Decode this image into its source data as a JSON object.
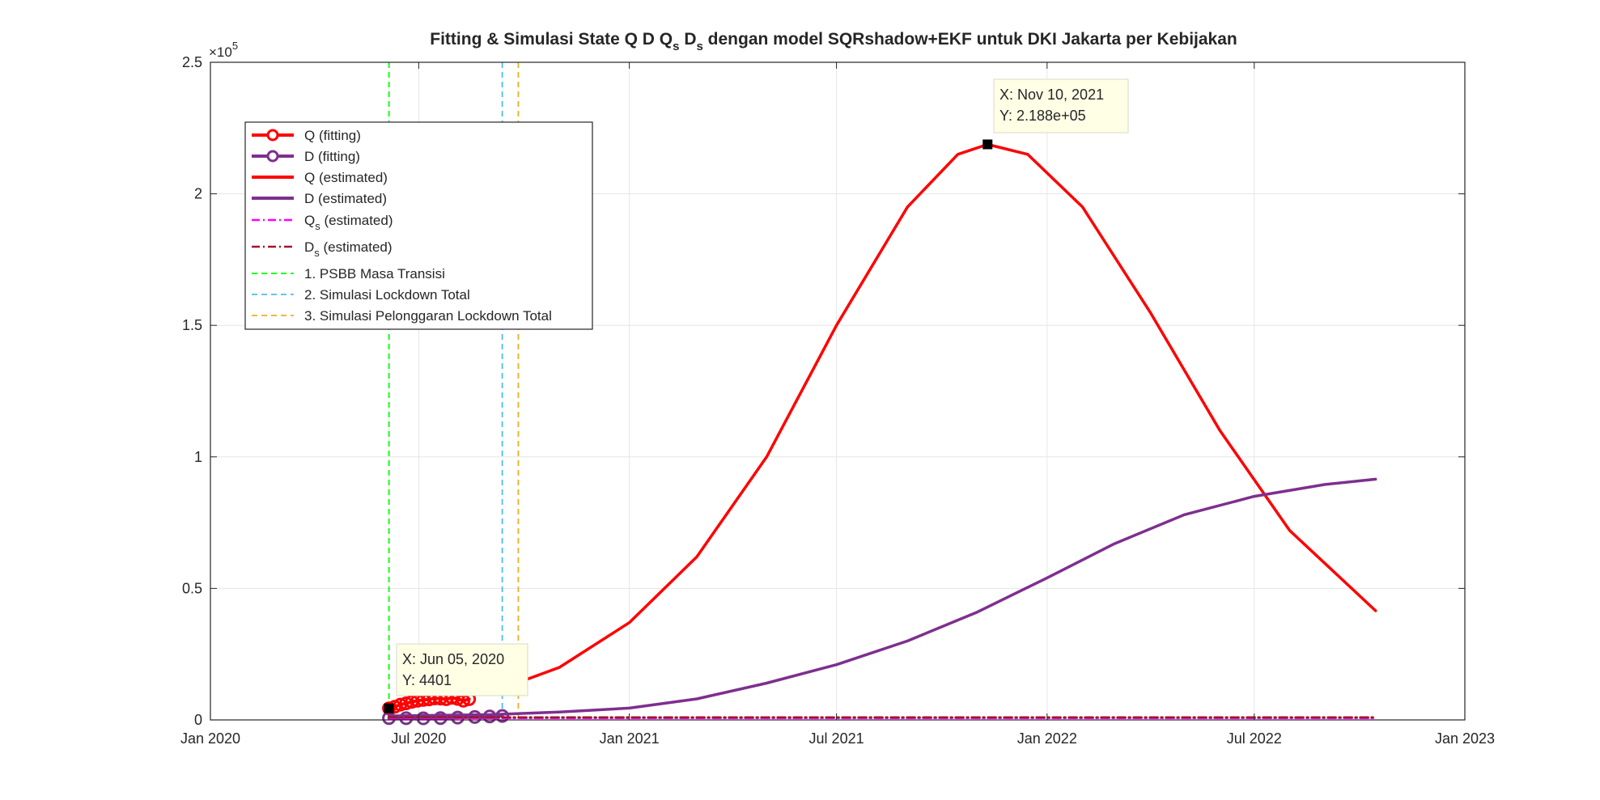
{
  "chart_data": {
    "type": "line",
    "title_parts": {
      "a": "Fitting & Simulasi State  Q D Q",
      "b": "s",
      "c": " D",
      "d": "s",
      "e": " dengan model SQRshadow+EKF untuk DKI Jakarta per Kebijakan"
    },
    "y_exponent": {
      "base": "×10",
      "power": "5"
    },
    "xlim": [
      "2020-01-01",
      "2023-01-01"
    ],
    "ylim": [
      0,
      250000
    ],
    "x_ticks": [
      {
        "date": "2020-01-01",
        "label": "Jan 2020"
      },
      {
        "date": "2020-07-01",
        "label": "Jul 2020"
      },
      {
        "date": "2021-01-01",
        "label": "Jan 2021"
      },
      {
        "date": "2021-07-01",
        "label": "Jul 2021"
      },
      {
        "date": "2022-01-01",
        "label": "Jan 2022"
      },
      {
        "date": "2022-07-01",
        "label": "Jul 2022"
      },
      {
        "date": "2023-01-01",
        "label": "Jan 2023"
      }
    ],
    "y_ticks": [
      {
        "value": 0,
        "label": "0"
      },
      {
        "value": 50000,
        "label": "0.5"
      },
      {
        "value": 100000,
        "label": "1"
      },
      {
        "value": 150000,
        "label": "1.5"
      },
      {
        "value": 200000,
        "label": "2"
      },
      {
        "value": 250000,
        "label": "2.5"
      }
    ],
    "grid": true,
    "legend_position": "top-left",
    "series": [
      {
        "name": "Q (fitting)",
        "color": "#ff0000",
        "style": "solid-marker",
        "points": [
          [
            "2020-06-05",
            4401
          ],
          [
            "2020-06-10",
            5000
          ],
          [
            "2020-06-15",
            5800
          ],
          [
            "2020-06-20",
            6300
          ],
          [
            "2020-06-25",
            6900
          ],
          [
            "2020-06-30",
            7300
          ],
          [
            "2020-07-05",
            7600
          ],
          [
            "2020-07-10",
            7800
          ],
          [
            "2020-07-15",
            8200
          ],
          [
            "2020-07-20",
            8100
          ],
          [
            "2020-07-25",
            7900
          ],
          [
            "2020-07-30",
            8400
          ],
          [
            "2020-08-04",
            8000
          ],
          [
            "2020-08-09",
            7300
          ],
          [
            "2020-08-14",
            7900
          ]
        ]
      },
      {
        "name": "D (fitting)",
        "color": "#7e2f8e",
        "style": "solid-marker",
        "points": [
          [
            "2020-06-05",
            700
          ],
          [
            "2020-06-20",
            650
          ],
          [
            "2020-07-05",
            600
          ],
          [
            "2020-07-20",
            700
          ],
          [
            "2020-08-04",
            900
          ],
          [
            "2020-08-19",
            1100
          ],
          [
            "2020-09-01",
            1300
          ],
          [
            "2020-09-12",
            1500
          ]
        ]
      },
      {
        "name": "Q (estimated)",
        "color": "#ff0000",
        "style": "solid",
        "points": [
          [
            "2020-09-12",
            12000
          ],
          [
            "2020-11-01",
            20000
          ],
          [
            "2021-01-01",
            37000
          ],
          [
            "2021-03-01",
            62000
          ],
          [
            "2021-05-01",
            100000
          ],
          [
            "2021-07-01",
            150000
          ],
          [
            "2021-09-01",
            195000
          ],
          [
            "2021-10-15",
            215000
          ],
          [
            "2021-11-10",
            218800
          ],
          [
            "2021-12-15",
            215000
          ],
          [
            "2022-02-01",
            195000
          ],
          [
            "2022-04-01",
            155000
          ],
          [
            "2022-06-01",
            110000
          ],
          [
            "2022-08-01",
            72000
          ],
          [
            "2022-10-15",
            41500
          ]
        ]
      },
      {
        "name": "D (estimated)",
        "color": "#7e2f8e",
        "style": "solid",
        "points": [
          [
            "2020-06-05",
            1500
          ],
          [
            "2020-09-01",
            2000
          ],
          [
            "2020-11-01",
            3000
          ],
          [
            "2021-01-01",
            4500
          ],
          [
            "2021-03-01",
            8000
          ],
          [
            "2021-05-01",
            14000
          ],
          [
            "2021-07-01",
            21000
          ],
          [
            "2021-09-01",
            30000
          ],
          [
            "2021-11-01",
            41000
          ],
          [
            "2022-01-01",
            54000
          ],
          [
            "2022-03-01",
            67000
          ],
          [
            "2022-05-01",
            78000
          ],
          [
            "2022-07-01",
            85000
          ],
          [
            "2022-09-01",
            89500
          ],
          [
            "2022-10-15",
            91500
          ]
        ]
      },
      {
        "name": "Q_s (estimated)",
        "color": "#ff00ff",
        "style": "dashdot",
        "points": [
          [
            "2020-06-05",
            700
          ],
          [
            "2022-10-15",
            700
          ]
        ]
      },
      {
        "name": "D_s (estimated)",
        "color": "#a2142f",
        "style": "dashdot",
        "points": [
          [
            "2020-06-05",
            1000
          ],
          [
            "2022-10-15",
            1000
          ]
        ]
      }
    ],
    "vlines": [
      {
        "name": "1. PSBB Masa Transisi",
        "date": "2020-06-05",
        "color": "#00ff00"
      },
      {
        "name": "2. Simulasi Lockdown Total",
        "date": "2020-09-12",
        "color": "#4dbeee"
      },
      {
        "name": "3. Simulasi Pelonggaran Lockdown Total",
        "date": "2020-09-26",
        "color": "#edb120"
      }
    ],
    "legend": [
      {
        "label": "Q (fitting)",
        "sub": "",
        "rest": ""
      },
      {
        "label": "D (fitting)",
        "sub": "",
        "rest": ""
      },
      {
        "label": "Q (estimated)",
        "sub": "",
        "rest": ""
      },
      {
        "label": "D (estimated)",
        "sub": "",
        "rest": ""
      },
      {
        "label": "Q",
        "sub": "s",
        "rest": " (estimated)"
      },
      {
        "label": "D",
        "sub": "s",
        "rest": " (estimated)"
      },
      {
        "label": "1. PSBB Masa Transisi",
        "sub": "",
        "rest": ""
      },
      {
        "label": "2. Simulasi Lockdown Total",
        "sub": "",
        "rest": ""
      },
      {
        "label": "3. Simulasi Pelonggaran Lockdown Total",
        "sub": "",
        "rest": ""
      }
    ],
    "datatips": [
      {
        "date": "2021-11-10",
        "value": 218800,
        "line1": "X: Nov 10, 2021",
        "line2": "Y: 2.188e+05"
      },
      {
        "date": "2020-06-05",
        "value": 4401,
        "line1": "X: Jun 05, 2020",
        "line2": "Y: 4401"
      }
    ]
  }
}
